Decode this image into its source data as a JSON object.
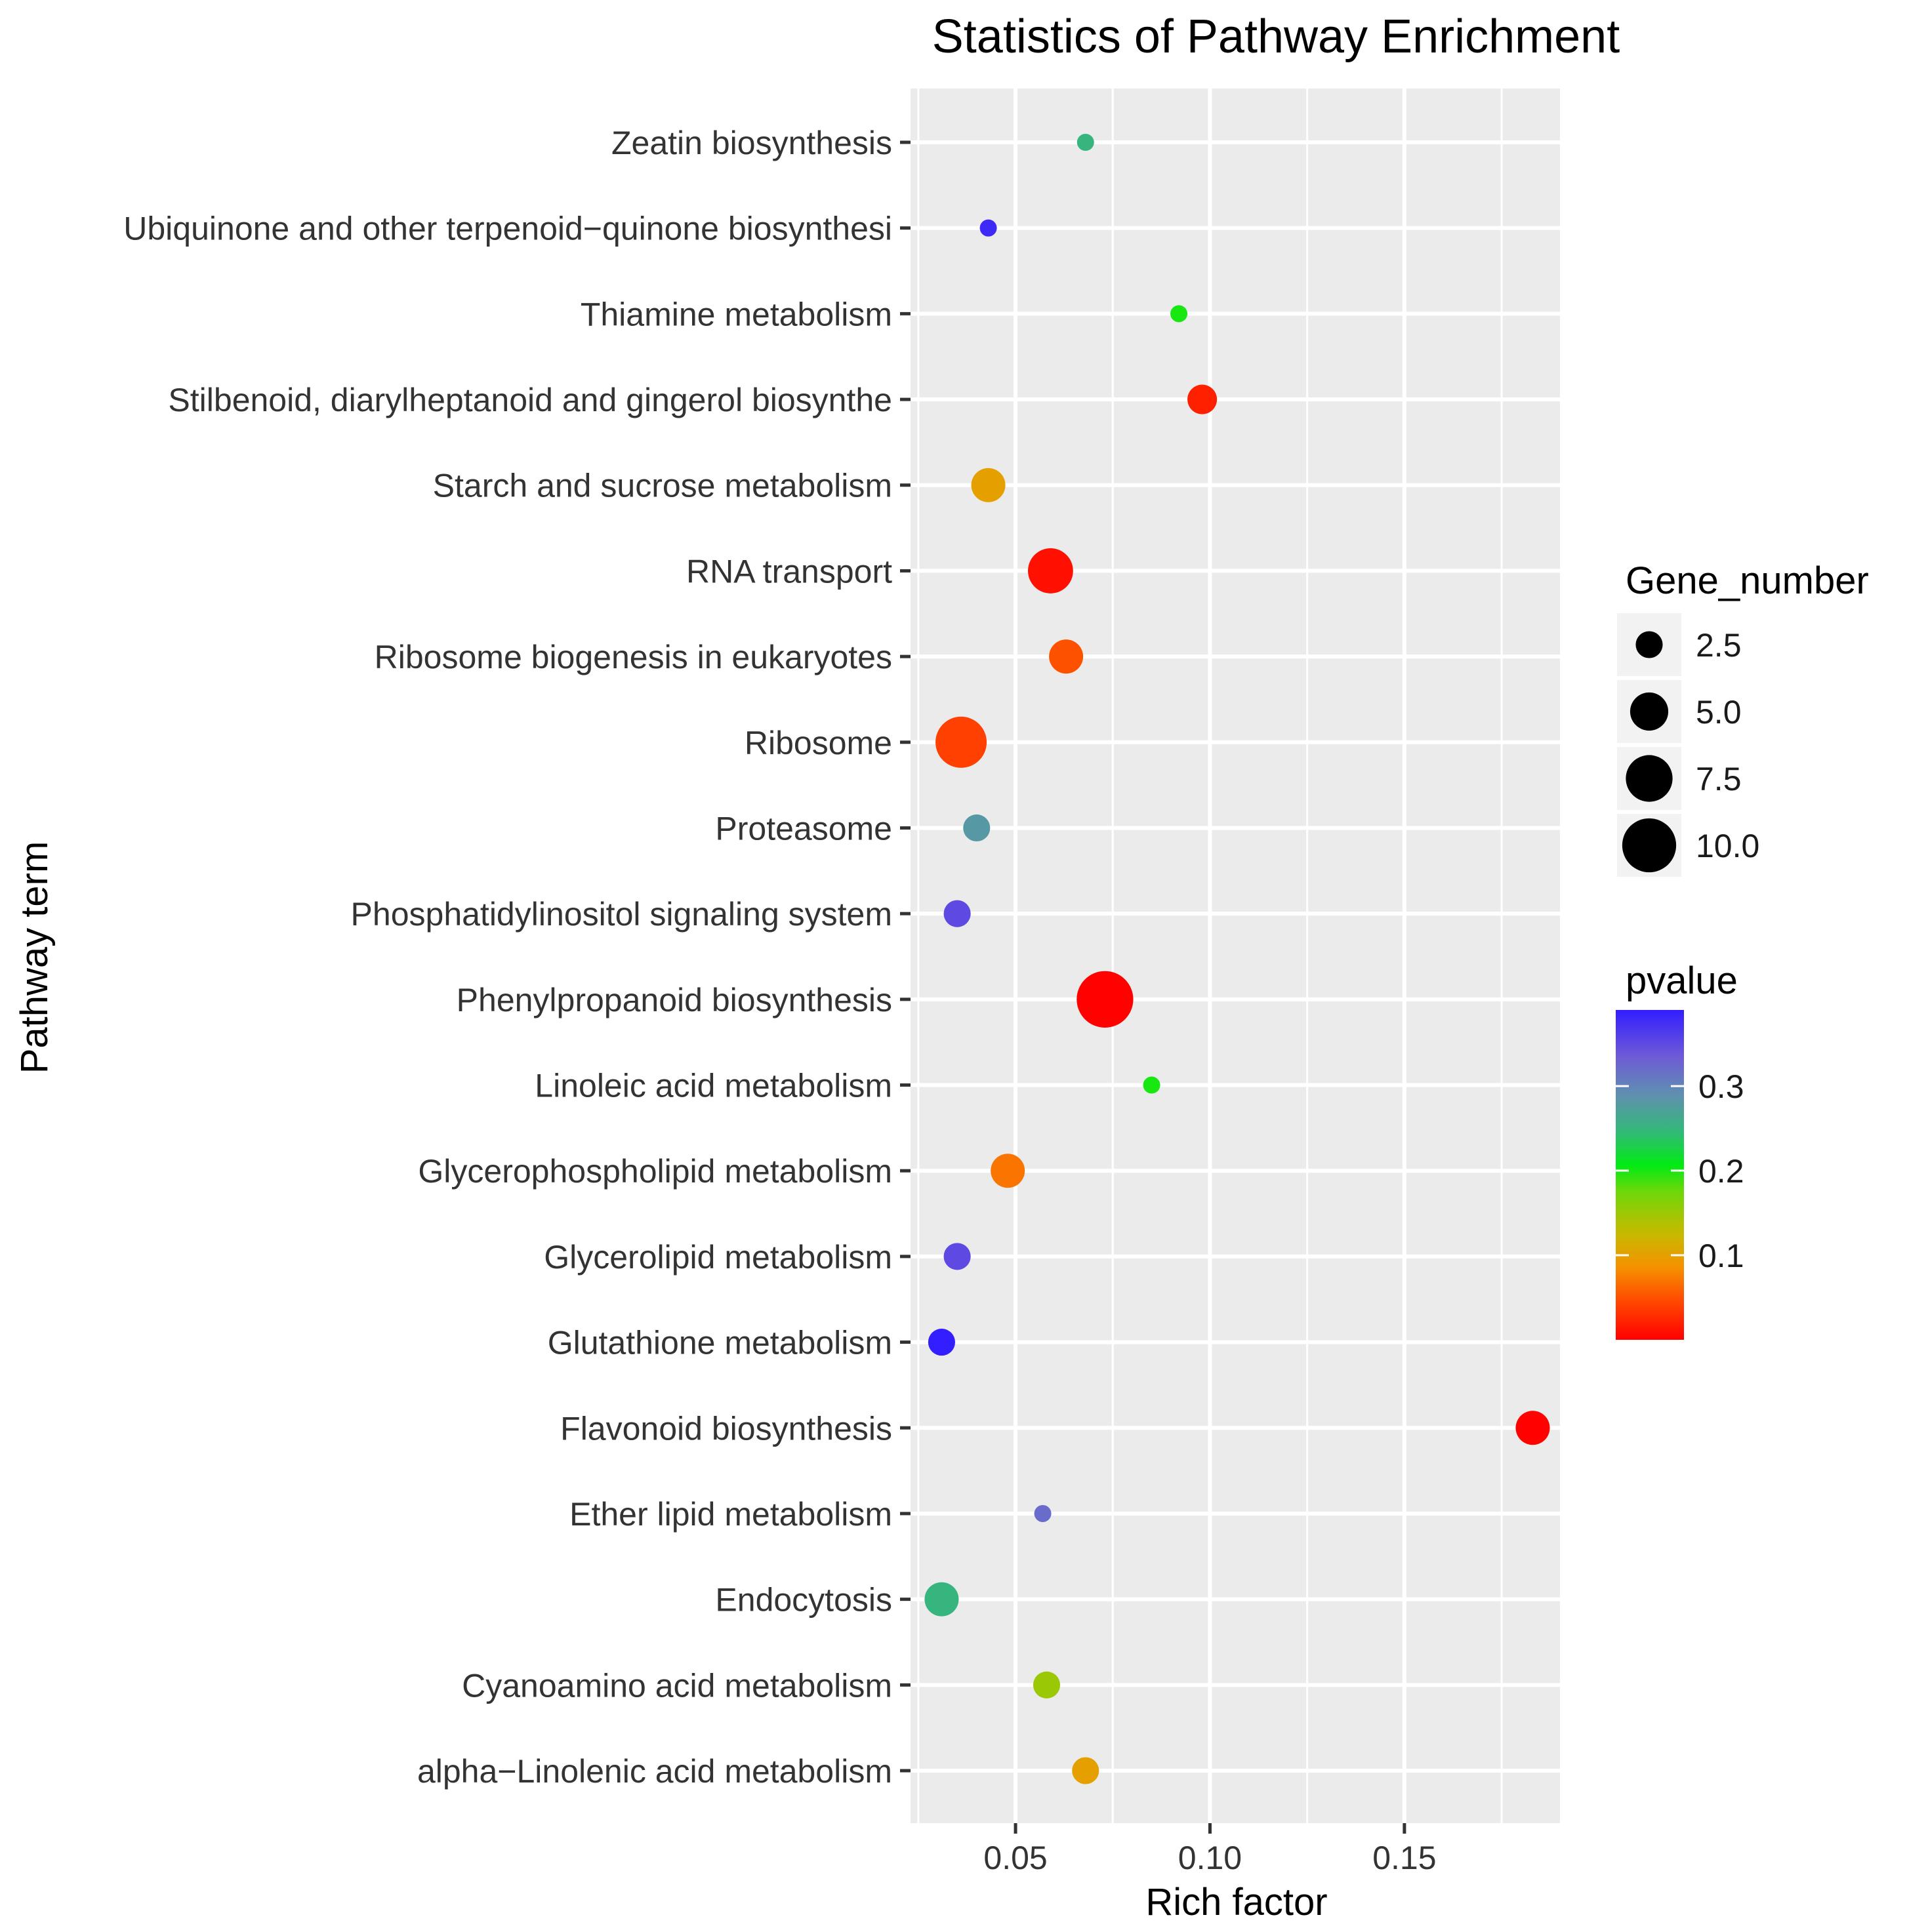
{
  "chart_data": {
    "type": "scatter",
    "title": "Statistics of Pathway Enrichment",
    "xlabel": "Rich factor",
    "ylabel": "Pathway term",
    "xlim": [
      0.023,
      0.19
    ],
    "xticks": [
      0.05,
      0.1,
      0.15
    ],
    "xtick_labels": [
      "0.05",
      "0.10",
      "0.15"
    ],
    "categories": [
      "Zeatin biosynthesis",
      "Ubiquinone and other terpenoid−quinone biosynthesi",
      "Thiamine metabolism",
      "Stilbenoid, diarylheptanoid and gingerol biosynthe",
      "Starch and sucrose metabolism",
      "RNA transport",
      "Ribosome biogenesis in eukaryotes",
      "Ribosome",
      "Proteasome",
      "Phosphatidylinositol signaling system",
      "Phenylpropanoid biosynthesis",
      "Linoleic acid metabolism",
      "Glycerophospholipid metabolism",
      "Glycerolipid metabolism",
      "Glutathione metabolism",
      "Flavonoid biosynthesis",
      "Ether lipid metabolism",
      "Endocytosis",
      "Cyanoamino acid metabolism",
      "alpha−Linolenic acid metabolism"
    ],
    "points": [
      {
        "term": "Zeatin biosynthesis",
        "rich_factor": 0.068,
        "gene_number": 1,
        "pvalue": 0.25
      },
      {
        "term": "Ubiquinone and other terpenoid−quinone biosynthesi",
        "rich_factor": 0.043,
        "gene_number": 1,
        "pvalue": 0.38
      },
      {
        "term": "Thiamine metabolism",
        "rich_factor": 0.092,
        "gene_number": 1,
        "pvalue": 0.2
      },
      {
        "term": "Stilbenoid, diarylheptanoid and gingerol biosynthe",
        "rich_factor": 0.098,
        "gene_number": 3,
        "pvalue": 0.02
      },
      {
        "term": "Starch and sucrose metabolism",
        "rich_factor": 0.043,
        "gene_number": 4,
        "pvalue": 0.1
      },
      {
        "term": "RNA transport",
        "rich_factor": 0.059,
        "gene_number": 7,
        "pvalue": 0.01
      },
      {
        "term": "Ribosome biogenesis in eukaryotes",
        "rich_factor": 0.063,
        "gene_number": 4,
        "pvalue": 0.05
      },
      {
        "term": "Ribosome",
        "rich_factor": 0.036,
        "gene_number": 9,
        "pvalue": 0.04
      },
      {
        "term": "Proteasome",
        "rich_factor": 0.04,
        "gene_number": 2.5,
        "pvalue": 0.28
      },
      {
        "term": "Phosphatidylinositol signaling system",
        "rich_factor": 0.035,
        "gene_number": 2.5,
        "pvalue": 0.35
      },
      {
        "term": "Phenylpropanoid biosynthesis",
        "rich_factor": 0.073,
        "gene_number": 11,
        "pvalue": 0.001
      },
      {
        "term": "Linoleic acid metabolism",
        "rich_factor": 0.085,
        "gene_number": 1,
        "pvalue": 0.2
      },
      {
        "term": "Glycerophospholipid metabolism",
        "rich_factor": 0.048,
        "gene_number": 4,
        "pvalue": 0.07
      },
      {
        "term": "Glycerolipid metabolism",
        "rich_factor": 0.035,
        "gene_number": 2.5,
        "pvalue": 0.35
      },
      {
        "term": "Glutathione metabolism",
        "rich_factor": 0.031,
        "gene_number": 2.5,
        "pvalue": 0.39
      },
      {
        "term": "Flavonoid biosynthesis",
        "rich_factor": 0.183,
        "gene_number": 4,
        "pvalue": 0.001
      },
      {
        "term": "Ether lipid metabolism",
        "rich_factor": 0.057,
        "gene_number": 1,
        "pvalue": 0.32
      },
      {
        "term": "Endocytosis",
        "rich_factor": 0.031,
        "gene_number": 4,
        "pvalue": 0.25
      },
      {
        "term": "Cyanoamino acid metabolism",
        "rich_factor": 0.058,
        "gene_number": 2.5,
        "pvalue": 0.15
      },
      {
        "term": "alpha−Linolenic acid metabolism",
        "rich_factor": 0.068,
        "gene_number": 2.5,
        "pvalue": 0.1
      }
    ],
    "size_legend": {
      "title": "Gene_number",
      "values": [
        2.5,
        5.0,
        7.5,
        10.0
      ],
      "labels": [
        "2.5",
        "5.0",
        "7.5",
        "10.0"
      ]
    },
    "color_legend": {
      "title": "pvalue",
      "range": [
        0.0,
        0.39
      ],
      "ticks": [
        0.3,
        0.2,
        0.1
      ],
      "tick_labels": [
        "0.3",
        "0.2",
        "0.1"
      ],
      "low_color": "#ff0000",
      "high_color": "#0000ff"
    },
    "colors": {
      "panel_background": "#ebebeb",
      "grid": "#ffffff",
      "size_legend_key": "#000000",
      "legend_key_background": "#f2f2f2"
    }
  }
}
